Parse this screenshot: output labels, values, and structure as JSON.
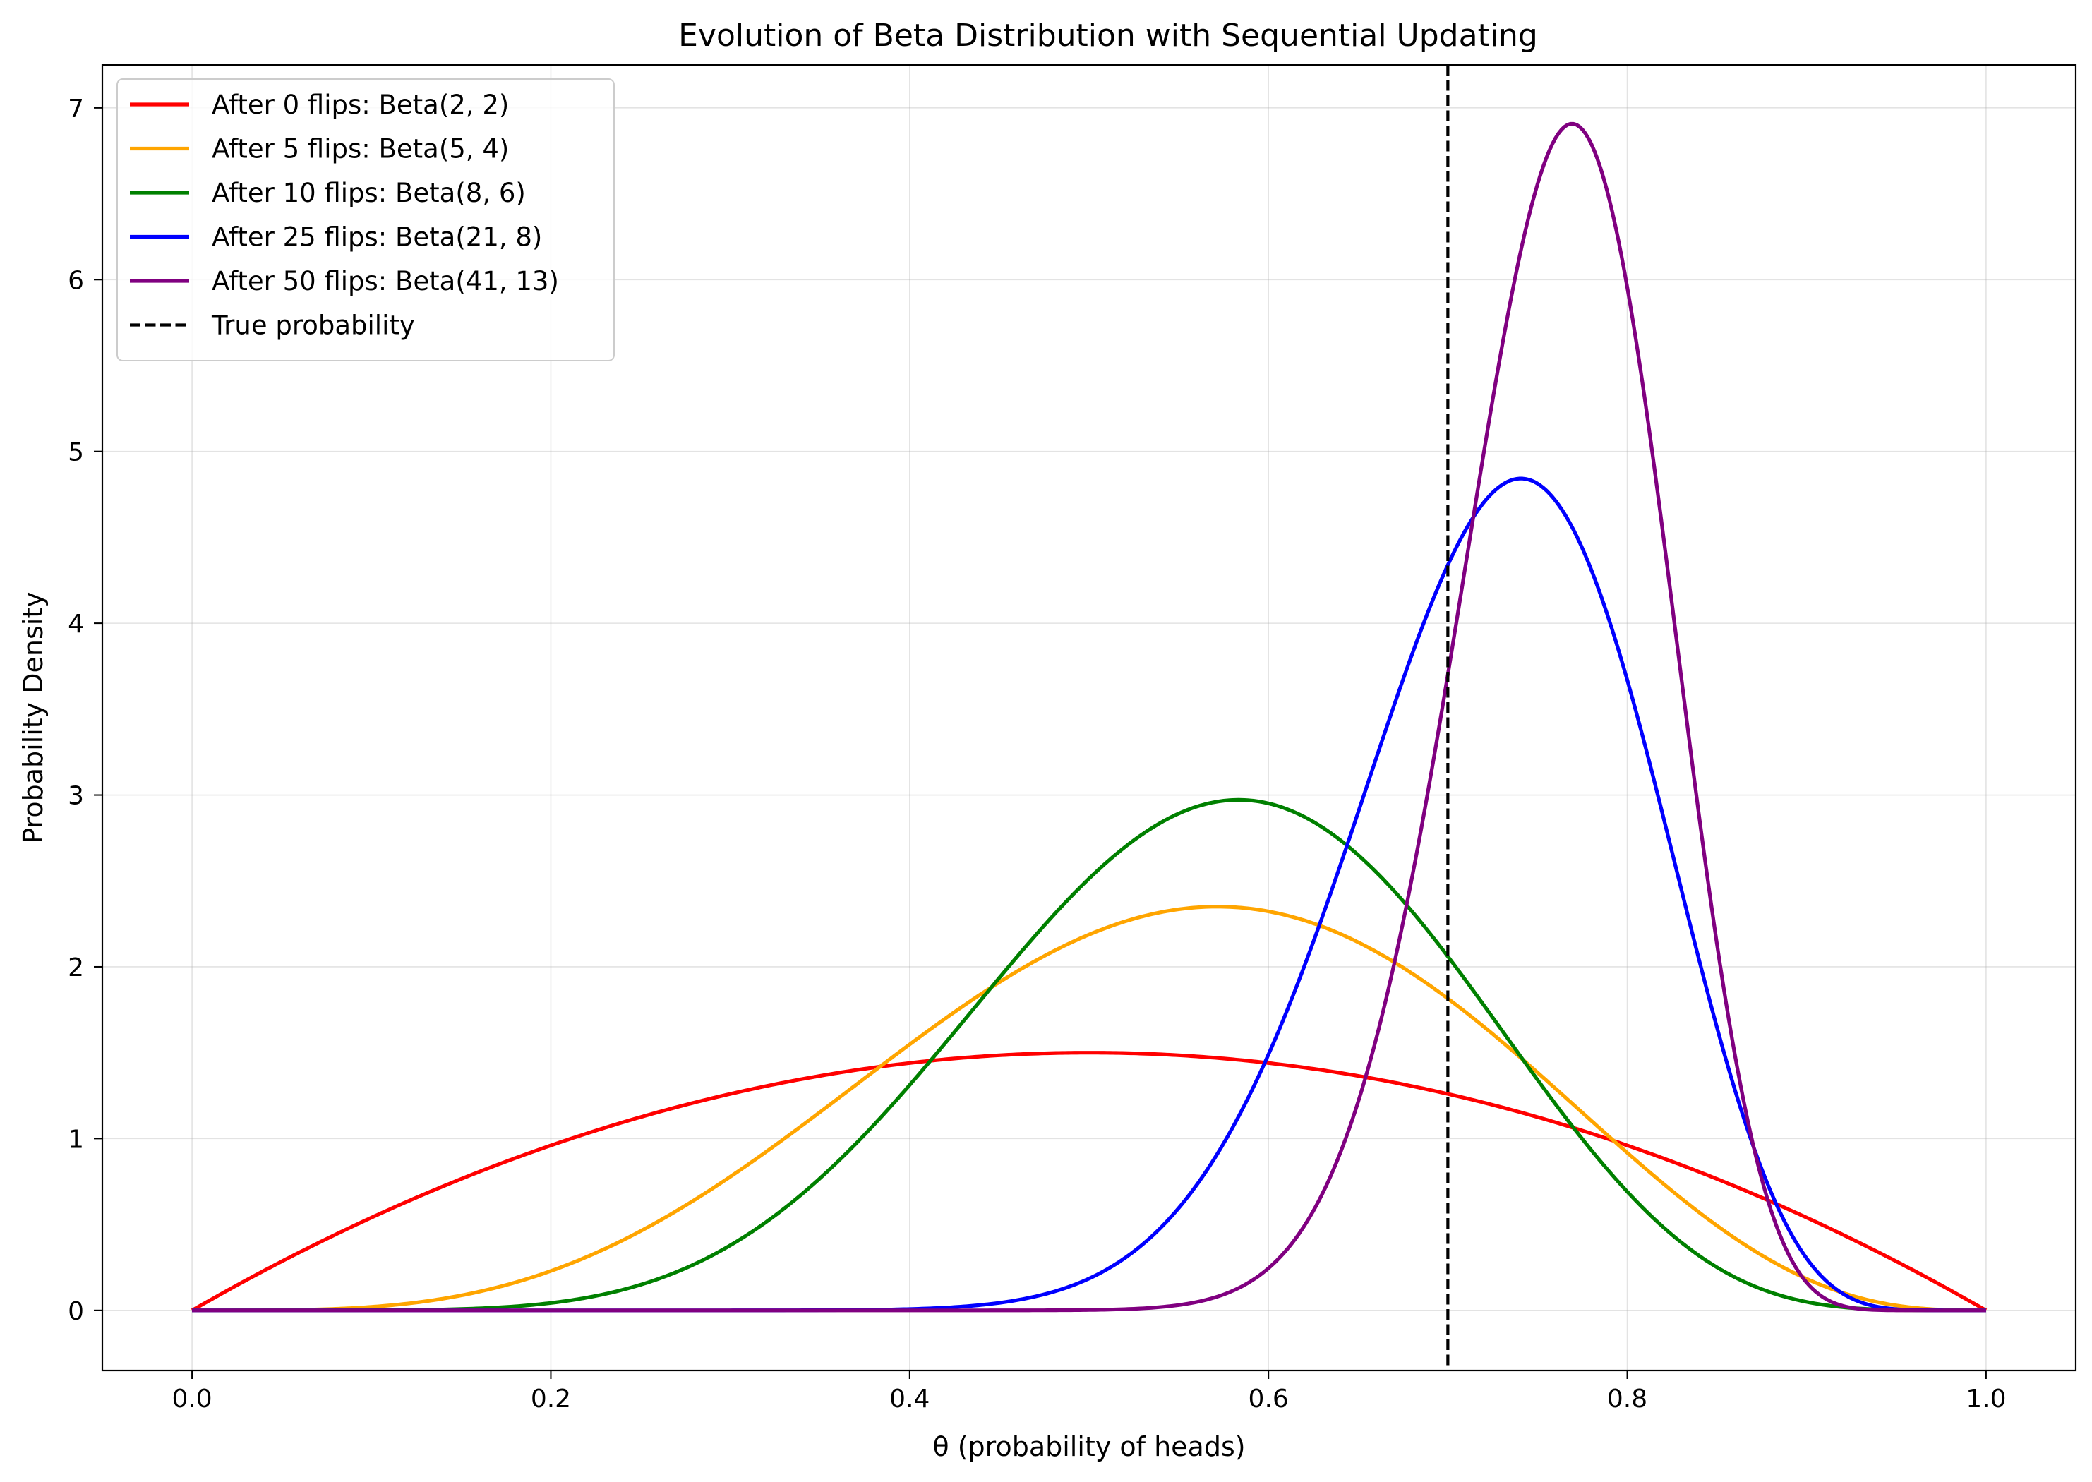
{
  "chart_data": {
    "type": "line",
    "title": "Evolution of Beta Distribution with Sequential Updating",
    "xlabel": "θ (probability of heads)",
    "ylabel": "Probability Density",
    "xlim": [
      -0.05,
      1.05
    ],
    "ylim": [
      -0.35,
      7.25
    ],
    "xticks": [
      0.0,
      0.2,
      0.4,
      0.6,
      0.8,
      1.0
    ],
    "xtick_labels": [
      "0.0",
      "0.2",
      "0.4",
      "0.6",
      "0.8",
      "1.0"
    ],
    "yticks": [
      0,
      1,
      2,
      3,
      4,
      5,
      6,
      7
    ],
    "ytick_labels": [
      "0",
      "1",
      "2",
      "3",
      "4",
      "5",
      "6",
      "7"
    ],
    "grid": true,
    "legend_position": "top-left",
    "series": [
      {
        "name": "After 0 flips: Beta(2, 2)",
        "alpha": 2,
        "beta": 2,
        "color": "#ff0000"
      },
      {
        "name": "After 5 flips: Beta(5, 4)",
        "alpha": 5,
        "beta": 4,
        "color": "#ffa500"
      },
      {
        "name": "After 10 flips: Beta(8, 6)",
        "alpha": 8,
        "beta": 6,
        "color": "#008000"
      },
      {
        "name": "After 25 flips: Beta(21, 8)",
        "alpha": 21,
        "beta": 8,
        "color": "#0000ff"
      },
      {
        "name": "After 50 flips: Beta(41, 13)",
        "alpha": 41,
        "beta": 13,
        "color": "#800080"
      }
    ],
    "reference_line": {
      "name": "True probability",
      "x": 0.7,
      "style": "dashed",
      "color": "#000000"
    }
  }
}
